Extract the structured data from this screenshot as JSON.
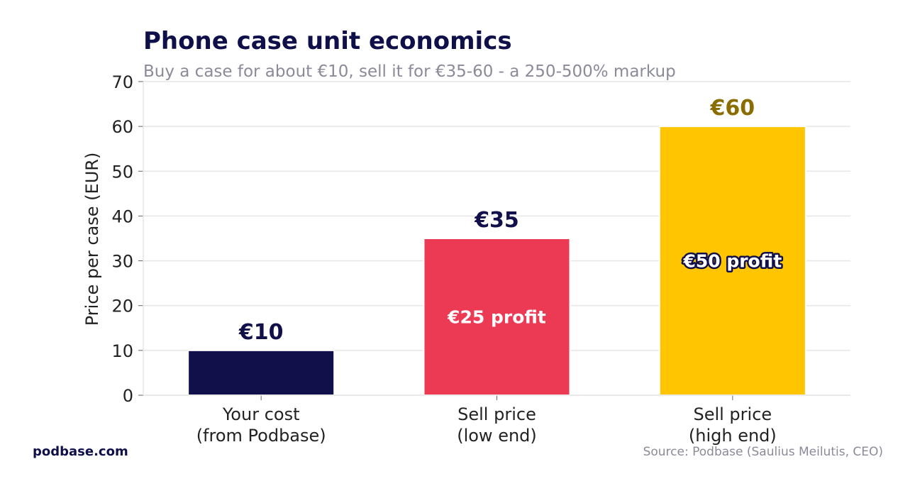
{
  "chart_data": {
    "type": "bar",
    "title": "Phone case unit economics",
    "subtitle": "Buy a case for about €10, sell it for €35-60 - a 250-500% markup",
    "ylabel": "Price per case (EUR)",
    "xlabel": "",
    "ylim": [
      0,
      70
    ],
    "yticks": [
      0,
      10,
      20,
      30,
      40,
      50,
      60,
      70
    ],
    "grid": true,
    "categories": [
      [
        "Your cost",
        "(from Podbase)"
      ],
      [
        "Sell price",
        "(low end)"
      ],
      [
        "Sell price",
        "(high end)"
      ]
    ],
    "values": [
      10,
      35,
      60
    ],
    "value_labels": [
      "€10",
      "€35",
      "€60"
    ],
    "inner_labels": [
      "",
      "€25 profit",
      "€50 profit"
    ],
    "colors": [
      "#11104a",
      "#ec3a55",
      "#ffc500"
    ],
    "value_label_colors": [
      "#11104a",
      "#11104a",
      "#8a6d00"
    ]
  },
  "footer": {
    "brand": "podbase.com",
    "source": "Source: Podbase (Saulius Meilutis, CEO)"
  }
}
